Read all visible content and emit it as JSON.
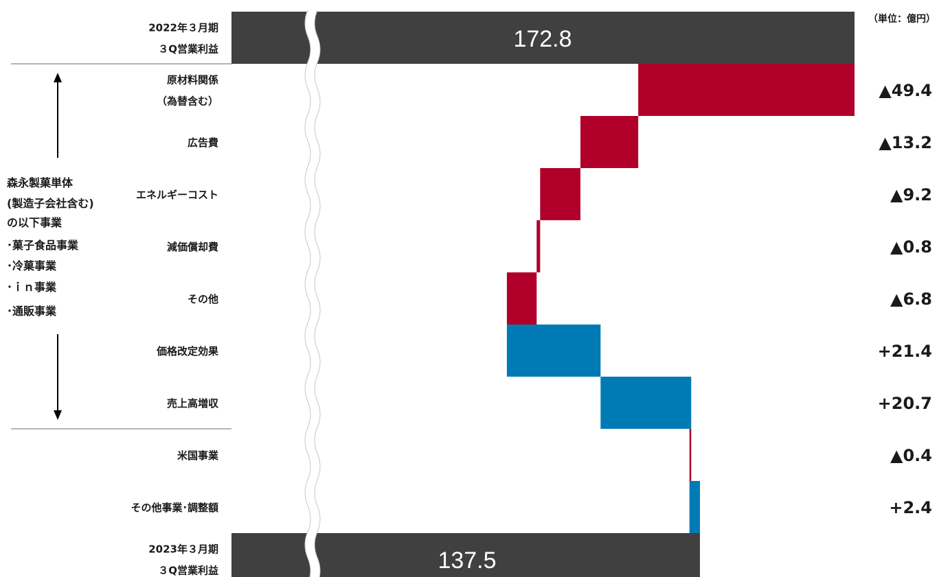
{
  "unit_label": "（単位：億円）",
  "colors": {
    "negative": "#b0002a",
    "positive": "#007ab5",
    "total": "#404040",
    "accent_text": "#e60012"
  },
  "side_note": {
    "lines": [
      "森永製菓単体",
      "(製造子会社含む)",
      "の以下事業",
      "･菓子食品事業",
      "･冷菓事業",
      "･ｉｎ事業",
      "･通販事業"
    ]
  },
  "chart_data": {
    "type": "waterfall",
    "start": {
      "label_lines": [
        "2022年３月期",
        "３Q営業利益"
      ],
      "value": 172.8,
      "value_label": "172.8"
    },
    "steps": [
      {
        "label_lines": [
          "原材料関係",
          "（為替含む）"
        ],
        "delta": -49.4,
        "value_label": "▲49.4"
      },
      {
        "label_lines": [
          "広告費"
        ],
        "delta": -13.2,
        "value_label": "▲13.2"
      },
      {
        "label_lines": [
          "エネルギーコスト"
        ],
        "delta": -9.2,
        "value_label": "▲9.2"
      },
      {
        "label_lines": [
          "減価償却費"
        ],
        "delta": -0.8,
        "value_label": "▲0.8"
      },
      {
        "label_lines": [
          "その他"
        ],
        "delta": -6.8,
        "value_label": "▲6.8"
      },
      {
        "label_lines": [
          "価格改定効果"
        ],
        "delta": 21.4,
        "value_label": "+21.4"
      },
      {
        "label_lines": [
          "売上高増収"
        ],
        "delta": 20.7,
        "value_label": "+20.7"
      },
      {
        "label_lines": [
          "米国事業"
        ],
        "delta": -0.4,
        "value_label": "▲0.4"
      },
      {
        "label_lines": [
          "その他事業･調整額"
        ],
        "delta": 2.4,
        "value_label": "+2.4"
      }
    ],
    "end": {
      "label_lines": [
        "2023年３月期",
        "３Q営業利益"
      ],
      "value": 137.5,
      "value_label": "137.5"
    },
    "axis_break": true
  }
}
